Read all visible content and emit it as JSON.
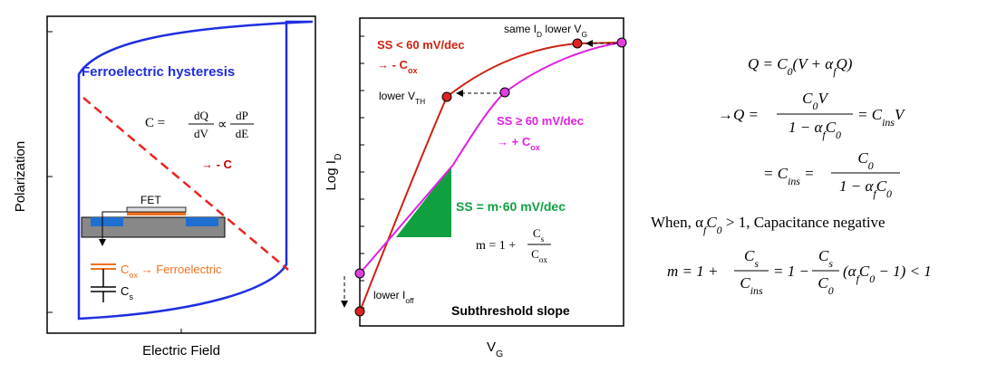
{
  "left_panel": {
    "title": "Ferroelectric hysteresis",
    "x_label": "Electric Field",
    "y_label": "Polarization",
    "formula": [
      "C =",
      "dQ",
      "dV",
      "∝",
      "dP",
      "dE"
    ],
    "negative_c": "→ - C",
    "fet": "FET",
    "cox_label": [
      "C",
      "ox",
      " → Ferroelectric"
    ],
    "cs_label": [
      "C",
      "s"
    ]
  },
  "right_panel": {
    "x_label": [
      "V",
      "G"
    ],
    "y_label": [
      "Log I",
      "D"
    ],
    "same_label": [
      "same I",
      "D",
      " lower V",
      "G"
    ],
    "ss_low": "SS < 60 mV/dec",
    "neg_cox": [
      "→ - C",
      "ox"
    ],
    "lower_vth": [
      "lower V",
      "TH"
    ],
    "ss_high": "SS ≥ 60 mV/dec",
    "pos_cox": [
      "→ + C",
      "ox"
    ],
    "ss_m": "SS = m·60 mV/dec",
    "m_formula": [
      "m = 1 +",
      "C",
      "s",
      "C",
      "ox"
    ],
    "lower_ioff": [
      "lower I",
      "off"
    ],
    "caption": "Subthreshold slope"
  },
  "equations": [
    [
      "Q = C",
      "0",
      "(V + α",
      "f",
      "Q)"
    ],
    [
      "→Q =",
      "C",
      "0",
      "V",
      "1 − α",
      "f",
      "C",
      "0",
      "= C",
      "ins",
      "V"
    ],
    [
      "= C",
      "ins",
      "=",
      "C",
      "0",
      "1 − α",
      "f",
      "C",
      "0"
    ],
    [
      "When,  α",
      "f",
      "C",
      "0",
      " > 1,  Capacitance negative"
    ],
    [
      "m = 1 +",
      "C",
      "s",
      "C",
      "ins",
      "= 1 −",
      "C",
      "s",
      "C",
      "0",
      "(α",
      "f",
      "C",
      "0",
      " − 1) < 1"
    ]
  ]
}
